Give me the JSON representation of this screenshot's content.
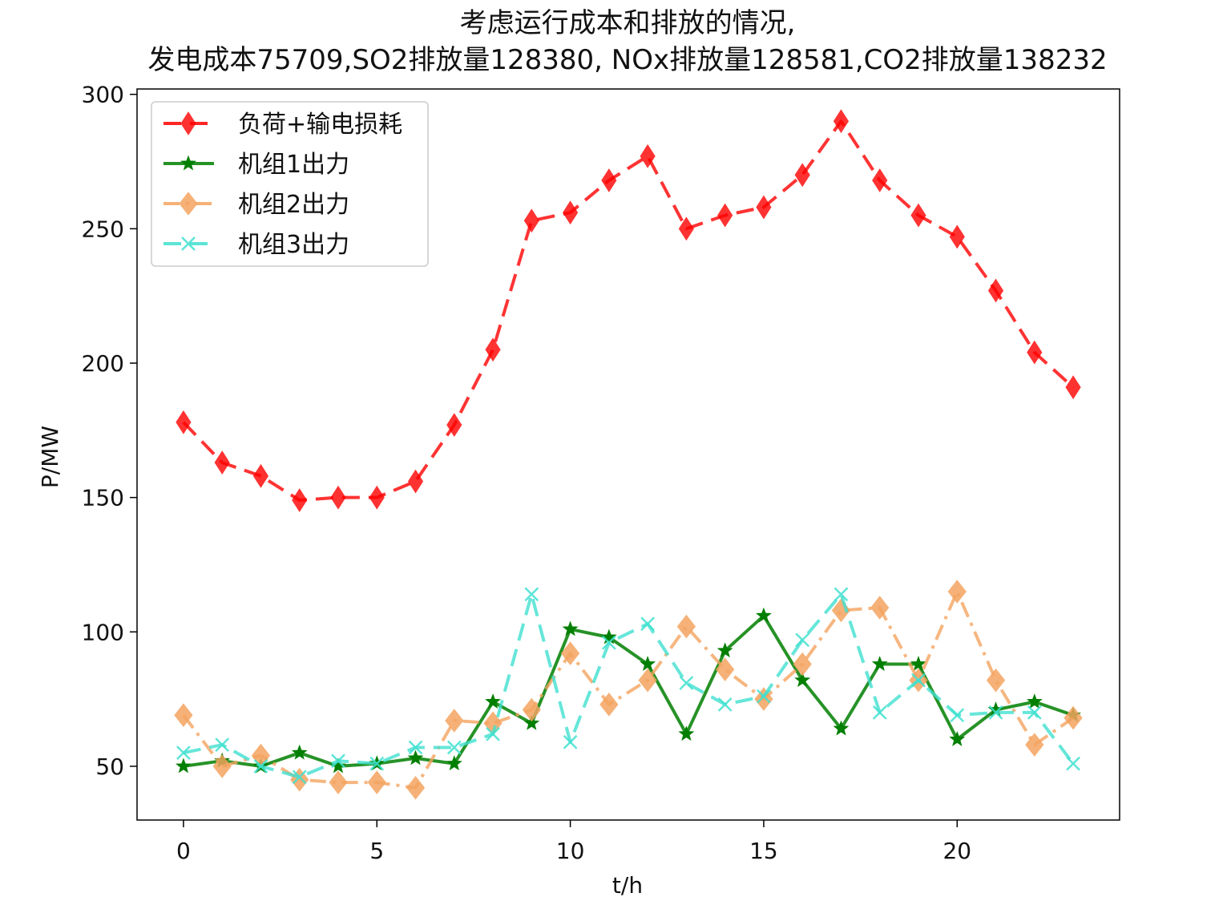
{
  "chart_data": {
    "type": "line",
    "title_lines": [
      "考虑运行成本和排放的情况,",
      "发电成本75709,SO2排放量128380, NOx排放量128581,CO2排放量138232"
    ],
    "xlabel": "t/h",
    "ylabel": "P/MW",
    "xlim": [
      -1.2,
      24.2
    ],
    "ylim": [
      30,
      302
    ],
    "xticks": [
      0,
      5,
      10,
      15,
      20
    ],
    "yticks": [
      50,
      100,
      150,
      200,
      250,
      300
    ],
    "grid": false,
    "legend_position": "top-left",
    "x": [
      0,
      1,
      2,
      3,
      4,
      5,
      6,
      7,
      8,
      9,
      10,
      11,
      12,
      13,
      14,
      15,
      16,
      17,
      18,
      19,
      20,
      21,
      22,
      23
    ],
    "series": [
      {
        "name": "负荷+输电损耗",
        "color": "#ff0000",
        "linestyle": "dashed",
        "marker": "diamond-thin",
        "values": [
          178,
          163,
          158,
          149,
          150,
          150,
          156,
          177,
          205,
          253,
          256,
          268,
          277,
          250,
          255,
          258,
          270,
          290,
          268,
          255,
          247,
          227,
          204,
          191
        ]
      },
      {
        "name": "机组1出力",
        "color": "#007f00",
        "linestyle": "solid",
        "marker": "star",
        "values": [
          50,
          52,
          50,
          55,
          50,
          51,
          53,
          51,
          74,
          66,
          101,
          98,
          88,
          62,
          93,
          106,
          82,
          64,
          88,
          88,
          60,
          71,
          74,
          69
        ]
      },
      {
        "name": "机组2出力",
        "color": "#f4a460",
        "linestyle": "dashdot",
        "marker": "diamond",
        "values": [
          69,
          50,
          54,
          45,
          44,
          44,
          42,
          67,
          66,
          71,
          92,
          73,
          82,
          102,
          86,
          75,
          88,
          108,
          109,
          82,
          115,
          82,
          58,
          68
        ]
      },
      {
        "name": "机组3出力",
        "color": "#40e0d0",
        "linestyle": "dashed",
        "marker": "x",
        "values": [
          55,
          58,
          50,
          46,
          52,
          51,
          57,
          57,
          62,
          114,
          59,
          96,
          103,
          81,
          73,
          76,
          97,
          114,
          70,
          82,
          69,
          70,
          70,
          51
        ]
      }
    ]
  }
}
